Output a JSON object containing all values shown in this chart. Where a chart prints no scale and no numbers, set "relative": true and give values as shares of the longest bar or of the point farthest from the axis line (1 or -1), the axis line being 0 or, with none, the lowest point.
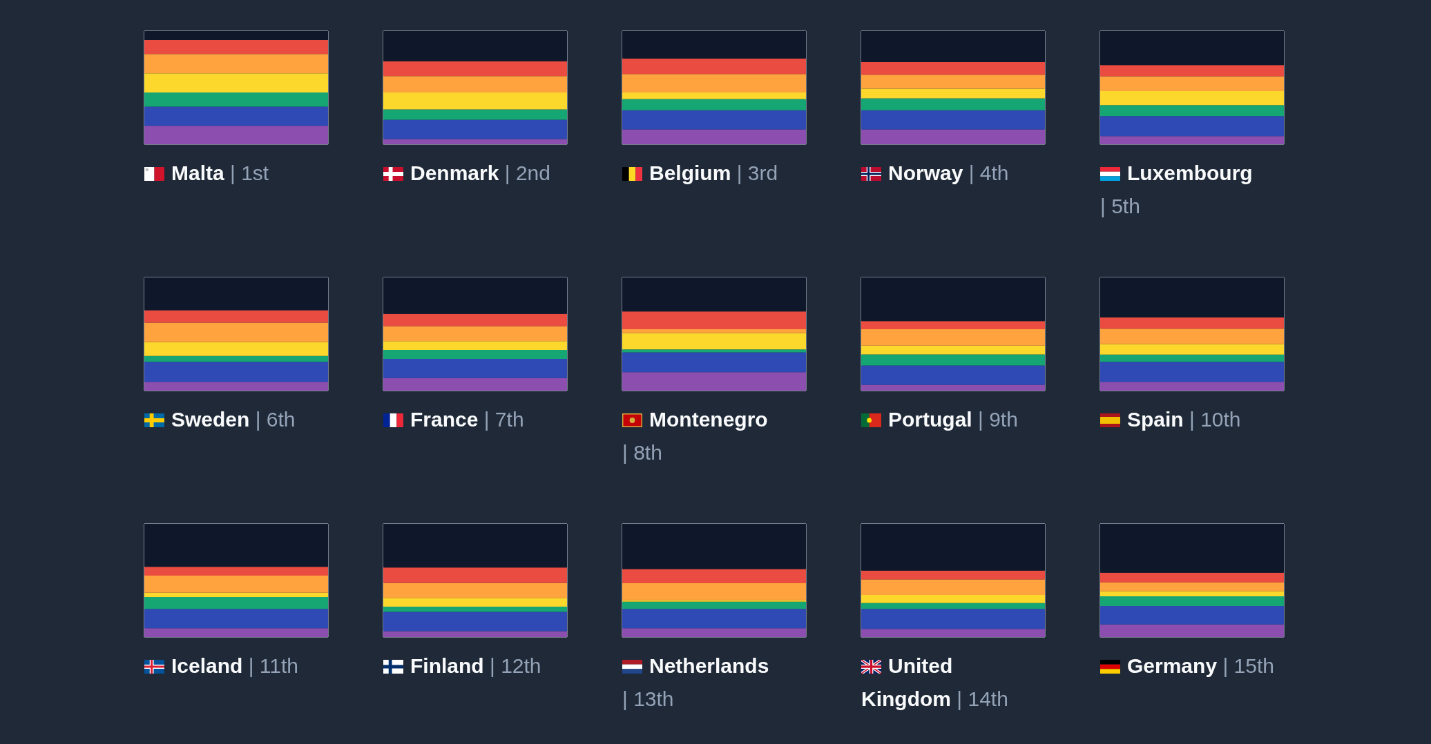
{
  "chart_data": [
    {
      "type": "bar",
      "title": "Malta",
      "subtitle": "| 1st",
      "categories": [
        null
      ],
      "stacked": true,
      "relative": true,
      "series": [
        {
          "color": "#8c4eaf",
          "values": [
            0.163
          ]
        },
        {
          "color": "#2f4ab5",
          "values": [
            0.17
          ]
        },
        {
          "color": "#16a674",
          "values": [
            0.124
          ]
        },
        {
          "color": "#fbd82b",
          "values": [
            0.17
          ]
        },
        {
          "color": "#fea33d",
          "values": [
            0.17
          ]
        },
        {
          "color": "#ea4c41",
          "values": [
            0.124
          ]
        },
        {
          "color": "#0f172a",
          "values": [
            0.079
          ]
        }
      ]
    },
    {
      "type": "bar",
      "title": "Denmark",
      "subtitle": "| 2nd",
      "categories": [
        null
      ],
      "stacked": true,
      "relative": true,
      "series": [
        {
          "color": "#8c4eaf",
          "values": [
            0.046
          ]
        },
        {
          "color": "#2f4ab5",
          "values": [
            0.17
          ]
        },
        {
          "color": "#16a674",
          "values": [
            0.092
          ]
        },
        {
          "color": "#fbd82b",
          "values": [
            0.15
          ]
        },
        {
          "color": "#fea33d",
          "values": [
            0.144
          ]
        },
        {
          "color": "#ea4c41",
          "values": [
            0.131
          ]
        },
        {
          "color": "#0f172a",
          "values": [
            0.267
          ]
        }
      ]
    },
    {
      "type": "bar",
      "title": "Belgium",
      "subtitle": "| 3rd",
      "categories": [
        null
      ],
      "stacked": true,
      "relative": true,
      "series": [
        {
          "color": "#8c4eaf",
          "values": [
            0.131
          ]
        },
        {
          "color": "#2f4ab5",
          "values": [
            0.17
          ]
        },
        {
          "color": "#16a674",
          "values": [
            0.098
          ]
        },
        {
          "color": "#fbd82b",
          "values": [
            0.059
          ]
        },
        {
          "color": "#fea33d",
          "values": [
            0.163
          ]
        },
        {
          "color": "#ea4c41",
          "values": [
            0.137
          ]
        },
        {
          "color": "#0f172a",
          "values": [
            0.242
          ]
        }
      ]
    },
    {
      "type": "bar",
      "title": "Norway",
      "subtitle": "| 4th",
      "categories": [
        null
      ],
      "stacked": true,
      "relative": true,
      "series": [
        {
          "color": "#8c4eaf",
          "values": [
            0.131
          ]
        },
        {
          "color": "#2f4ab5",
          "values": [
            0.17
          ]
        },
        {
          "color": "#16a674",
          "values": [
            0.105
          ]
        },
        {
          "color": "#fbd82b",
          "values": [
            0.085
          ]
        },
        {
          "color": "#fea33d",
          "values": [
            0.124
          ]
        },
        {
          "color": "#ea4c41",
          "values": [
            0.111
          ]
        },
        {
          "color": "#0f172a",
          "values": [
            0.274
          ]
        }
      ]
    },
    {
      "type": "bar",
      "title": "Luxembourg",
      "subtitle": "| 5th",
      "categories": [
        null
      ],
      "stacked": true,
      "relative": true,
      "series": [
        {
          "color": "#8c4eaf",
          "values": [
            0.072
          ]
        },
        {
          "color": "#2f4ab5",
          "values": [
            0.176
          ]
        },
        {
          "color": "#16a674",
          "values": [
            0.098
          ]
        },
        {
          "color": "#fbd82b",
          "values": [
            0.124
          ]
        },
        {
          "color": "#fea33d",
          "values": [
            0.131
          ]
        },
        {
          "color": "#ea4c41",
          "values": [
            0.098
          ]
        },
        {
          "color": "#0f172a",
          "values": [
            0.301
          ]
        }
      ]
    },
    {
      "type": "bar",
      "title": "Sweden",
      "subtitle": "| 6th",
      "categories": [
        null
      ],
      "stacked": true,
      "relative": true,
      "series": [
        {
          "color": "#8c4eaf",
          "values": [
            0.078
          ]
        },
        {
          "color": "#2f4ab5",
          "values": [
            0.176
          ]
        },
        {
          "color": "#16a674",
          "values": [
            0.052
          ]
        },
        {
          "color": "#fbd82b",
          "values": [
            0.124
          ]
        },
        {
          "color": "#fea33d",
          "values": [
            0.17
          ]
        },
        {
          "color": "#ea4c41",
          "values": [
            0.111
          ]
        },
        {
          "color": "#0f172a",
          "values": [
            0.289
          ]
        }
      ]
    },
    {
      "type": "bar",
      "title": "France",
      "subtitle": "| 7th",
      "categories": [
        null
      ],
      "stacked": true,
      "relative": true,
      "series": [
        {
          "color": "#8c4eaf",
          "values": [
            0.111
          ]
        },
        {
          "color": "#2f4ab5",
          "values": [
            0.17
          ]
        },
        {
          "color": "#16a674",
          "values": [
            0.078
          ]
        },
        {
          "color": "#fbd82b",
          "values": [
            0.078
          ]
        },
        {
          "color": "#fea33d",
          "values": [
            0.131
          ]
        },
        {
          "color": "#ea4c41",
          "values": [
            0.111
          ]
        },
        {
          "color": "#0f172a",
          "values": [
            0.321
          ]
        }
      ]
    },
    {
      "type": "bar",
      "title": "Montenegro",
      "subtitle": "| 8th",
      "categories": [
        null
      ],
      "stacked": true,
      "relative": true,
      "series": [
        {
          "color": "#8c4eaf",
          "values": [
            0.163
          ]
        },
        {
          "color": "#2f4ab5",
          "values": [
            0.176
          ]
        },
        {
          "color": "#16a674",
          "values": [
            0.026
          ]
        },
        {
          "color": "#fbd82b",
          "values": [
            0.144
          ]
        },
        {
          "color": "#fea33d",
          "values": [
            0.033
          ]
        },
        {
          "color": "#ea4c41",
          "values": [
            0.157
          ]
        },
        {
          "color": "#0f172a",
          "values": [
            0.301
          ]
        }
      ]
    },
    {
      "type": "bar",
      "title": "Portugal",
      "subtitle": "| 9th",
      "categories": [
        null
      ],
      "stacked": true,
      "relative": true,
      "series": [
        {
          "color": "#8c4eaf",
          "values": [
            0.052
          ]
        },
        {
          "color": "#2f4ab5",
          "values": [
            0.17
          ]
        },
        {
          "color": "#16a674",
          "values": [
            0.098
          ]
        },
        {
          "color": "#fbd82b",
          "values": [
            0.078
          ]
        },
        {
          "color": "#fea33d",
          "values": [
            0.144
          ]
        },
        {
          "color": "#ea4c41",
          "values": [
            0.072
          ]
        },
        {
          "color": "#0f172a",
          "values": [
            0.386
          ]
        }
      ]
    },
    {
      "type": "bar",
      "title": "Spain",
      "subtitle": "| 10th",
      "categories": [
        null
      ],
      "stacked": true,
      "relative": true,
      "series": [
        {
          "color": "#8c4eaf",
          "values": [
            0.078
          ]
        },
        {
          "color": "#2f4ab5",
          "values": [
            0.176
          ]
        },
        {
          "color": "#16a674",
          "values": [
            0.065
          ]
        },
        {
          "color": "#fbd82b",
          "values": [
            0.092
          ]
        },
        {
          "color": "#fea33d",
          "values": [
            0.137
          ]
        },
        {
          "color": "#ea4c41",
          "values": [
            0.098
          ]
        },
        {
          "color": "#0f172a",
          "values": [
            0.354
          ]
        }
      ]
    },
    {
      "type": "bar",
      "title": "Iceland",
      "subtitle": "| 11th",
      "categories": [
        null
      ],
      "stacked": true,
      "relative": true,
      "series": [
        {
          "color": "#8c4eaf",
          "values": [
            0.078
          ]
        },
        {
          "color": "#2f4ab5",
          "values": [
            0.17
          ]
        },
        {
          "color": "#16a674",
          "values": [
            0.105
          ]
        },
        {
          "color": "#fbd82b",
          "values": [
            0.039
          ]
        },
        {
          "color": "#fea33d",
          "values": [
            0.15
          ]
        },
        {
          "color": "#ea4c41",
          "values": [
            0.078
          ]
        },
        {
          "color": "#0f172a",
          "values": [
            0.38
          ]
        }
      ]
    },
    {
      "type": "bar",
      "title": "Finland",
      "subtitle": "| 12th",
      "categories": [
        null
      ],
      "stacked": true,
      "relative": true,
      "series": [
        {
          "color": "#8c4eaf",
          "values": [
            0.052
          ]
        },
        {
          "color": "#2f4ab5",
          "values": [
            0.17
          ]
        },
        {
          "color": "#16a674",
          "values": [
            0.046
          ]
        },
        {
          "color": "#fbd82b",
          "values": [
            0.078
          ]
        },
        {
          "color": "#fea33d",
          "values": [
            0.131
          ]
        },
        {
          "color": "#ea4c41",
          "values": [
            0.137
          ]
        },
        {
          "color": "#0f172a",
          "values": [
            0.386
          ]
        }
      ]
    },
    {
      "type": "bar",
      "title": "Netherlands",
      "subtitle": "| 13th",
      "categories": [
        null
      ],
      "stacked": true,
      "relative": true,
      "series": [
        {
          "color": "#8c4eaf",
          "values": [
            0.078
          ]
        },
        {
          "color": "#2f4ab5",
          "values": [
            0.17
          ]
        },
        {
          "color": "#16a674",
          "values": [
            0.065
          ]
        },
        {
          "color": "#fbd82b",
          "values": [
            0.013
          ]
        },
        {
          "color": "#fea33d",
          "values": [
            0.15
          ]
        },
        {
          "color": "#ea4c41",
          "values": [
            0.124
          ]
        },
        {
          "color": "#0f172a",
          "values": [
            0.4
          ]
        }
      ]
    },
    {
      "type": "bar",
      "title": "United Kingdom",
      "subtitle": "| 14th",
      "categories": [
        null
      ],
      "stacked": true,
      "relative": true,
      "series": [
        {
          "color": "#8c4eaf",
          "values": [
            0.072
          ]
        },
        {
          "color": "#2f4ab5",
          "values": [
            0.176
          ]
        },
        {
          "color": "#16a674",
          "values": [
            0.052
          ]
        },
        {
          "color": "#fbd82b",
          "values": [
            0.072
          ]
        },
        {
          "color": "#fea33d",
          "values": [
            0.137
          ]
        },
        {
          "color": "#ea4c41",
          "values": [
            0.078
          ]
        },
        {
          "color": "#0f172a",
          "values": [
            0.413
          ]
        }
      ]
    },
    {
      "type": "bar",
      "title": "Germany",
      "subtitle": "| 15th",
      "categories": [
        null
      ],
      "stacked": true,
      "relative": true,
      "series": [
        {
          "color": "#8c4eaf",
          "values": [
            0.111
          ]
        },
        {
          "color": "#2f4ab5",
          "values": [
            0.163
          ]
        },
        {
          "color": "#16a674",
          "values": [
            0.085
          ]
        },
        {
          "color": "#fbd82b",
          "values": [
            0.046
          ]
        },
        {
          "color": "#fea33d",
          "values": [
            0.078
          ]
        },
        {
          "color": "#ea4c41",
          "values": [
            0.085
          ]
        },
        {
          "color": "#0f172a",
          "values": [
            0.432
          ]
        }
      ]
    }
  ]
}
